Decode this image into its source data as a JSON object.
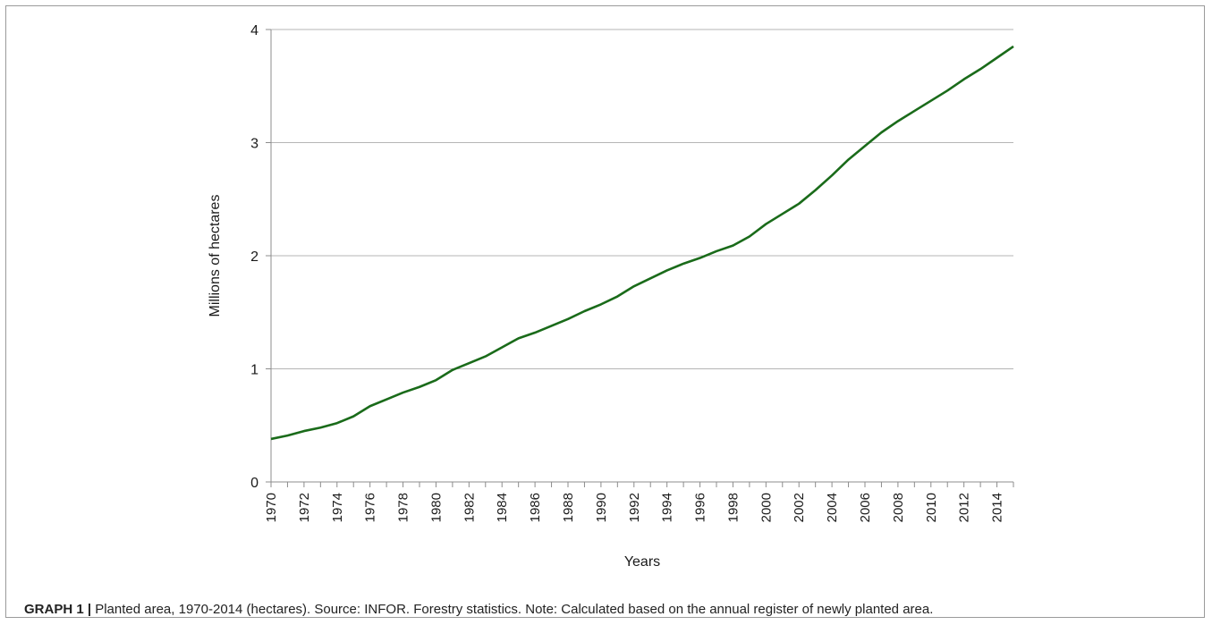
{
  "caption": {
    "lead": "GRAPH 1 |",
    "text": " Planted area, 1970-2014 (hectares). Source: INFOR. Forestry statistics. Note: Calculated based on the annual register of newly planted area."
  },
  "chart_data": {
    "type": "line",
    "title": "",
    "xlabel": "Years",
    "ylabel": "Millions  of hectares",
    "ylim": [
      0,
      4
    ],
    "yticks": [
      0,
      1,
      2,
      3,
      4
    ],
    "xrange": [
      1970,
      2015
    ],
    "xtick_labels": [
      "1970",
      "1972",
      "1974",
      "1976",
      "1978",
      "1980",
      "1982",
      "1984",
      "1986",
      "1988",
      "1990",
      "1992",
      "1994",
      "1996",
      "1998",
      "2000",
      "2002",
      "2004",
      "2006",
      "2008",
      "2010",
      "2012",
      "2014"
    ],
    "grid": true,
    "line_color": "#1a6b1a",
    "series": [
      {
        "x": [
          1970,
          1971,
          1972,
          1973,
          1974,
          1975,
          1976,
          1977,
          1978,
          1979,
          1980,
          1981,
          1982,
          1983,
          1984,
          1985,
          1986,
          1987,
          1988,
          1989,
          1990,
          1991,
          1992,
          1993,
          1994,
          1995,
          1996,
          1997,
          1998,
          1999,
          2000,
          2001,
          2002,
          2003,
          2004,
          2005,
          2006,
          2007,
          2008,
          2009,
          2010,
          2011,
          2012,
          2013,
          2014,
          2015
        ],
        "values": [
          0.38,
          0.41,
          0.45,
          0.48,
          0.52,
          0.58,
          0.67,
          0.73,
          0.79,
          0.84,
          0.9,
          0.99,
          1.05,
          1.11,
          1.19,
          1.27,
          1.32,
          1.38,
          1.44,
          1.51,
          1.57,
          1.64,
          1.73,
          1.8,
          1.87,
          1.93,
          1.98,
          2.04,
          2.09,
          2.17,
          2.28,
          2.37,
          2.46,
          2.58,
          2.71,
          2.85,
          2.97,
          3.09,
          3.19,
          3.28,
          3.37,
          3.46,
          3.56,
          3.65,
          3.75,
          3.85
        ]
      }
    ]
  }
}
